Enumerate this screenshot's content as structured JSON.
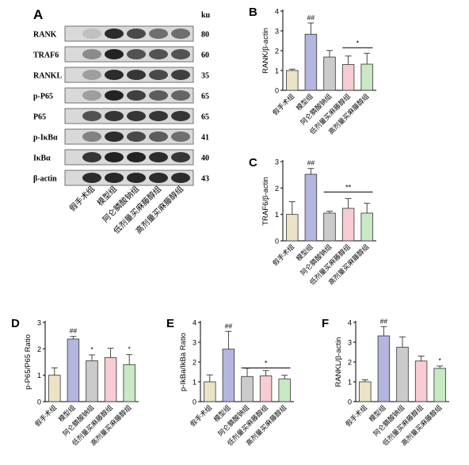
{
  "group_labels": [
    "假手术组",
    "模型组",
    "阿仑膦酸钠组",
    "低剂量买麻藤醇组",
    "高剂量买麻藤醇组"
  ],
  "colors": [
    "#ece2c6",
    "#b4b6e0",
    "#cbcbcb",
    "#f7ccd2",
    "#c8e9c3"
  ],
  "blot": {
    "panel_letter": "A",
    "unit_header": "ku",
    "lanes": 5,
    "rows": [
      {
        "protein": "RANK",
        "kd": "80",
        "intensities": [
          0.12,
          0.9,
          0.75,
          0.55,
          0.55
        ]
      },
      {
        "protein": "TRAF6",
        "kd": "60",
        "intensities": [
          0.4,
          0.95,
          0.7,
          0.7,
          0.7
        ]
      },
      {
        "protein": "RANKL",
        "kd": "35",
        "intensities": [
          0.3,
          0.9,
          0.85,
          0.75,
          0.8
        ]
      },
      {
        "protein": "p-P65",
        "kd": "65",
        "intensities": [
          0.3,
          0.95,
          0.8,
          0.65,
          0.6
        ]
      },
      {
        "protein": "P65",
        "kd": "65",
        "intensities": [
          0.7,
          0.85,
          0.85,
          0.85,
          0.85
        ]
      },
      {
        "protein": "p-IκBα",
        "kd": "41",
        "intensities": [
          0.45,
          0.9,
          0.75,
          0.65,
          0.55
        ]
      },
      {
        "protein": "IκBα",
        "kd": "40",
        "intensities": [
          0.85,
          0.95,
          0.95,
          0.9,
          0.85
        ]
      },
      {
        "protein": "β-actin",
        "kd": "43",
        "intensities": [
          0.9,
          0.92,
          0.92,
          0.9,
          0.9
        ]
      }
    ]
  },
  "chart_data": [
    {
      "id": "B",
      "panel_letter": "B",
      "type": "bar",
      "ylabel": "RANK/β-actin",
      "ylim": [
        0,
        4
      ],
      "yticks": [
        0,
        1,
        2,
        3,
        4
      ],
      "values": [
        1.0,
        2.83,
        1.68,
        1.3,
        1.32
      ],
      "errors": [
        0.07,
        0.57,
        0.33,
        0.43,
        0.55
      ],
      "annotations": [
        {
          "bar": 1,
          "text": "##"
        }
      ],
      "bracket": {
        "from": 3,
        "to": 4,
        "text": "*",
        "y": 2.15
      }
    },
    {
      "id": "C",
      "panel_letter": "C",
      "type": "bar",
      "ylabel": "TRAF6/β-actin",
      "ylim": [
        0,
        3
      ],
      "yticks": [
        0,
        1,
        2,
        3
      ],
      "values": [
        1.0,
        2.52,
        1.05,
        1.23,
        1.05
      ],
      "errors": [
        0.48,
        0.22,
        0.07,
        0.37,
        0.37
      ],
      "annotations": [
        {
          "bar": 1,
          "text": "##"
        }
      ],
      "bracket": {
        "from": 2,
        "to": 4,
        "text": "**",
        "y": 1.85
      }
    },
    {
      "id": "D",
      "panel_letter": "D",
      "type": "bar",
      "ylabel": "p-P65/P65 Ratio",
      "ylim": [
        0,
        3
      ],
      "yticks": [
        0,
        1,
        2,
        3
      ],
      "values": [
        1.0,
        2.37,
        1.55,
        1.67,
        1.4
      ],
      "errors": [
        0.28,
        0.1,
        0.22,
        0.35,
        0.38
      ],
      "annotations": [
        {
          "bar": 1,
          "text": "##"
        },
        {
          "bar": 2,
          "text": "*"
        },
        {
          "bar": 4,
          "text": "*"
        }
      ],
      "bracket": null
    },
    {
      "id": "E",
      "panel_letter": "E",
      "type": "bar",
      "ylabel": "p-IkBa/IkBa Ratio",
      "ylim": [
        0,
        4
      ],
      "yticks": [
        0,
        1,
        2,
        3,
        4
      ],
      "values": [
        1.0,
        2.65,
        1.27,
        1.3,
        1.15
      ],
      "errors": [
        0.35,
        0.9,
        0.42,
        0.27,
        0.18
      ],
      "annotations": [
        {
          "bar": 1,
          "text": "##"
        }
      ],
      "bracket": {
        "from": 2,
        "to": 4,
        "text": "*",
        "y": 1.7
      }
    },
    {
      "id": "F",
      "panel_letter": "F",
      "type": "bar",
      "ylabel": "RANKL/β-actin",
      "ylim": [
        0,
        4
      ],
      "yticks": [
        0,
        1,
        2,
        3,
        4
      ],
      "values": [
        1.0,
        3.32,
        2.75,
        2.05,
        1.68
      ],
      "errors": [
        0.1,
        0.47,
        0.52,
        0.25,
        0.12
      ],
      "annotations": [
        {
          "bar": 1,
          "text": "##"
        },
        {
          "bar": 4,
          "text": "*"
        }
      ],
      "bracket": null
    }
  ]
}
